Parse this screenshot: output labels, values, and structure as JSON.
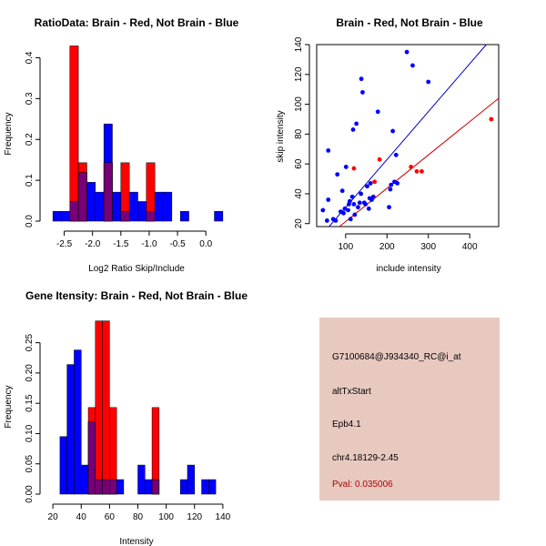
{
  "colors": {
    "red": "#ff0000",
    "blue": "#0000ff",
    "overlap": "#770077",
    "panel_bg": "#e8c9c0",
    "pval": "#b00000",
    "regression_blue": "#0000cc",
    "regression_red": "#cc0000"
  },
  "chart_data": [
    {
      "id": "ratio",
      "type": "bar",
      "title": "RatioData: Brain - Red, Not Brain - Blue",
      "xlabel": "Log2 Ratio Skip/Include",
      "ylabel": "Frequency",
      "xlim": [
        -2.75,
        0.35
      ],
      "ylim": [
        0,
        0.43
      ],
      "xticks": [
        {
          "v": -2.5,
          "label": "-2.5"
        },
        {
          "v": -2.0,
          "label": "-2.0"
        },
        {
          "v": -1.5,
          "label": "-1.5"
        },
        {
          "v": -1.0,
          "label": "-1.0"
        },
        {
          "v": -0.5,
          "label": "-0.5"
        },
        {
          "v": 0.0,
          "label": "0.0"
        }
      ],
      "yticks": [
        {
          "v": 0.0,
          "label": "0.0"
        },
        {
          "v": 0.1,
          "label": "0.1"
        },
        {
          "v": 0.2,
          "label": "0.2"
        },
        {
          "v": 0.3,
          "label": "0.3"
        },
        {
          "v": 0.4,
          "label": "0.4"
        }
      ],
      "bin_edges": [
        -2.7,
        -2.55,
        -2.4,
        -2.25,
        -2.1,
        -1.95,
        -1.8,
        -1.65,
        -1.5,
        -1.35,
        -1.2,
        -1.05,
        -0.9,
        -0.75,
        -0.6,
        -0.45,
        -0.3,
        -0.15,
        0.0,
        0.15,
        0.3
      ],
      "series": [
        {
          "name": "Not Brain",
          "color": "blue",
          "values": [
            0.024,
            0.024,
            0.048,
            0.119,
            0.095,
            0.071,
            0.238,
            0.071,
            0.024,
            0.071,
            0.048,
            0.024,
            0.071,
            0.071,
            0,
            0.024,
            0,
            0,
            0,
            0.024
          ]
        },
        {
          "name": "Brain",
          "color": "red",
          "values": [
            0,
            0,
            0.429,
            0.143,
            0,
            0,
            0.143,
            0,
            0.143,
            0,
            0,
            0.143,
            0,
            0,
            0,
            0,
            0,
            0,
            0,
            0
          ]
        }
      ]
    },
    {
      "id": "scatter",
      "type": "scatter",
      "title": "Brain - Red, Not Brain - Blue",
      "xlabel": "include intensity",
      "ylabel": "skip intensity",
      "xlim": [
        30,
        470
      ],
      "ylim": [
        18,
        140
      ],
      "xticks": [
        {
          "v": 100,
          "label": "100"
        },
        {
          "v": 200,
          "label": "200"
        },
        {
          "v": 300,
          "label": "300"
        },
        {
          "v": 400,
          "label": "400"
        }
      ],
      "yticks": [
        {
          "v": 20,
          "label": "20"
        },
        {
          "v": 40,
          "label": "40"
        },
        {
          "v": 60,
          "label": "60"
        },
        {
          "v": 80,
          "label": "80"
        },
        {
          "v": 100,
          "label": "100"
        },
        {
          "v": 120,
          "label": "120"
        },
        {
          "v": 140,
          "label": "140"
        }
      ],
      "series": [
        {
          "name": "Not Brain",
          "color": "blue",
          "points": [
            [
              45,
              29
            ],
            [
              55,
              22
            ],
            [
              58,
              36
            ],
            [
              58,
              69
            ],
            [
              70,
              23
            ],
            [
              76,
              22
            ],
            [
              80,
              53
            ],
            [
              88,
              28
            ],
            [
              92,
              42
            ],
            [
              95,
              27
            ],
            [
              98,
              30
            ],
            [
              101,
              58
            ],
            [
              106,
              29
            ],
            [
              108,
              33
            ],
            [
              110,
              35
            ],
            [
              112,
              23
            ],
            [
              116,
              38
            ],
            [
              118,
              83
            ],
            [
              120,
              33
            ],
            [
              122,
              26
            ],
            [
              126,
              87
            ],
            [
              130,
              31
            ],
            [
              134,
              34
            ],
            [
              137,
              40
            ],
            [
              138,
              117
            ],
            [
              141,
              108
            ],
            [
              145,
              34
            ],
            [
              148,
              33
            ],
            [
              152,
              45
            ],
            [
              156,
              30
            ],
            [
              158,
              37
            ],
            [
              160,
              47
            ],
            [
              163,
              36
            ],
            [
              167,
              38
            ],
            [
              178,
              95
            ],
            [
              205,
              31
            ],
            [
              208,
              43
            ],
            [
              210,
              46
            ],
            [
              214,
              82
            ],
            [
              218,
              48
            ],
            [
              222,
              66
            ],
            [
              225,
              47
            ],
            [
              248,
              135
            ],
            [
              262,
              126
            ],
            [
              300,
              115
            ]
          ]
        },
        {
          "name": "Brain",
          "color": "red",
          "points": [
            [
              120,
              57
            ],
            [
              170,
              48
            ],
            [
              182,
              63
            ],
            [
              258,
              58
            ],
            [
              272,
              55
            ],
            [
              284,
              55
            ],
            [
              452,
              90
            ]
          ]
        }
      ],
      "fit_lines": [
        {
          "name": "Not Brain",
          "color": "regression_blue",
          "from": [
            60,
            18
          ],
          "to": [
            440,
            140
          ]
        },
        {
          "name": "Brain",
          "color": "regression_red",
          "from": [
            85,
            18
          ],
          "to": [
            470,
            104
          ]
        }
      ]
    },
    {
      "id": "intensity",
      "type": "bar",
      "title": "Gene Itensity: Brain - Red, Not Brain - Blue",
      "xlabel": "Intensity",
      "ylabel": "Frequency",
      "xlim": [
        18,
        142
      ],
      "ylim": [
        0,
        0.29
      ],
      "xticks": [
        {
          "v": 20,
          "label": "20"
        },
        {
          "v": 40,
          "label": "40"
        },
        {
          "v": 60,
          "label": "60"
        },
        {
          "v": 80,
          "label": "80"
        },
        {
          "v": 100,
          "label": "100"
        },
        {
          "v": 120,
          "label": "120"
        },
        {
          "v": 140,
          "label": "140"
        }
      ],
      "yticks": [
        {
          "v": 0.0,
          "label": "0.00"
        },
        {
          "v": 0.05,
          "label": "0.05"
        },
        {
          "v": 0.1,
          "label": "0.10"
        },
        {
          "v": 0.15,
          "label": "0.15"
        },
        {
          "v": 0.2,
          "label": "0.20"
        },
        {
          "v": 0.25,
          "label": "0.25"
        }
      ],
      "bin_edges": [
        25,
        30,
        35,
        40,
        45,
        50,
        55,
        60,
        65,
        70,
        75,
        80,
        85,
        90,
        95,
        100,
        105,
        110,
        115,
        120,
        125,
        130,
        135
      ],
      "series": [
        {
          "name": "Not Brain",
          "color": "blue",
          "values": [
            0.095,
            0.214,
            0.238,
            0.048,
            0.119,
            0.024,
            0.024,
            0.024,
            0.024,
            0,
            0,
            0.048,
            0.024,
            0.024,
            0,
            0,
            0,
            0.024,
            0.048,
            0,
            0.024,
            0.024
          ]
        },
        {
          "name": "Brain",
          "color": "red",
          "values": [
            0,
            0,
            0,
            0,
            0.143,
            0.286,
            0.286,
            0.143,
            0,
            0,
            0,
            0,
            0,
            0.143,
            0,
            0,
            0,
            0,
            0,
            0,
            0,
            0
          ]
        }
      ]
    }
  ],
  "info_panel": {
    "probe_id": "G7100684@J934340_RC@i_at",
    "event_type": "altTxStart",
    "gene": "Epb4.1",
    "location": "chr4.18129-2.45",
    "pval": "Pval: 0.035006"
  }
}
